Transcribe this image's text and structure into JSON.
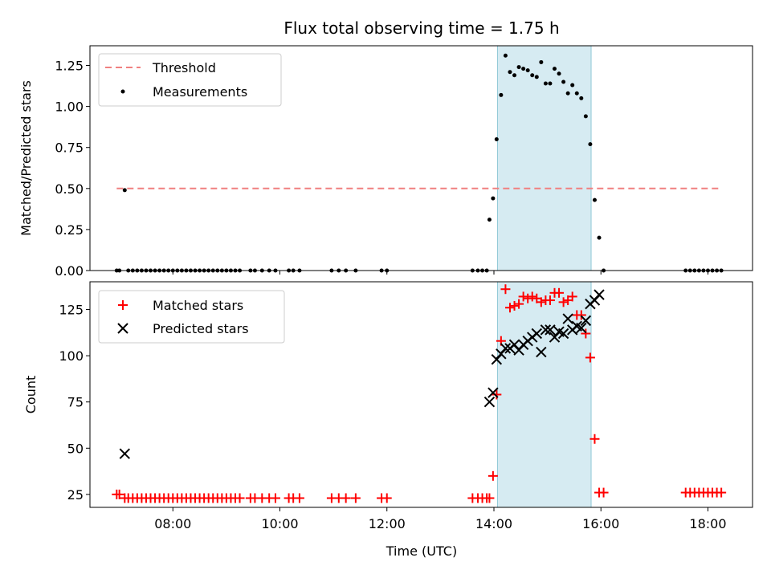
{
  "chart_data": [
    {
      "type": "scatter",
      "title": "Flux total observing time = 1.75 h",
      "xlabel": "",
      "ylabel": "Matched/Predicted stars",
      "xlim": [
        "06:27",
        "18:50"
      ],
      "ylim": [
        0,
        1.37
      ],
      "yticks": [
        0,
        0.25,
        0.5,
        0.75,
        1.0,
        1.25
      ],
      "ytick_labels": [
        "0.00",
        "0.25",
        "0.50",
        "0.75",
        "1.00",
        "1.25"
      ],
      "xticks": [
        "08:00",
        "10:00",
        "12:00",
        "14:00",
        "16:00",
        "18:00"
      ],
      "xtick_labels_shown": false,
      "grid": false,
      "legend_position": "top-left",
      "highlight_span": {
        "start": "14:04",
        "end": "15:49",
        "color": "#add8e6"
      },
      "threshold": {
        "name": "Threshold",
        "value": 0.5,
        "x_range": [
          "06:57",
          "18:15"
        ],
        "color": "#f08080",
        "style": "dashed"
      },
      "series": [
        {
          "name": "Measurements",
          "color": "#000000",
          "marker": "dot",
          "points": [
            [
              "06:57",
              0
            ],
            [
              "07:00",
              0
            ],
            [
              "07:06",
              0.49
            ],
            [
              "07:10",
              0
            ],
            [
              "07:15",
              0
            ],
            [
              "07:20",
              0
            ],
            [
              "07:25",
              0
            ],
            [
              "07:30",
              0
            ],
            [
              "07:35",
              0
            ],
            [
              "07:40",
              0
            ],
            [
              "07:45",
              0
            ],
            [
              "07:50",
              0
            ],
            [
              "07:55",
              0
            ],
            [
              "08:00",
              0
            ],
            [
              "08:05",
              0
            ],
            [
              "08:10",
              0
            ],
            [
              "08:15",
              0
            ],
            [
              "08:20",
              0
            ],
            [
              "08:25",
              0
            ],
            [
              "08:30",
              0
            ],
            [
              "08:35",
              0
            ],
            [
              "08:40",
              0
            ],
            [
              "08:45",
              0
            ],
            [
              "08:50",
              0
            ],
            [
              "08:55",
              0
            ],
            [
              "09:00",
              0
            ],
            [
              "09:05",
              0
            ],
            [
              "09:10",
              0
            ],
            [
              "09:15",
              0
            ],
            [
              "09:27",
              0
            ],
            [
              "09:32",
              0
            ],
            [
              "09:40",
              0
            ],
            [
              "09:48",
              0
            ],
            [
              "09:55",
              0
            ],
            [
              "10:10",
              0
            ],
            [
              "10:15",
              0
            ],
            [
              "10:22",
              0
            ],
            [
              "10:58",
              0
            ],
            [
              "11:06",
              0
            ],
            [
              "11:14",
              0
            ],
            [
              "11:25",
              0
            ],
            [
              "11:54",
              0
            ],
            [
              "12:00",
              0
            ],
            [
              "13:36",
              0
            ],
            [
              "13:42",
              0
            ],
            [
              "13:47",
              0
            ],
            [
              "13:52",
              0
            ],
            [
              "13:55",
              0.31
            ],
            [
              "13:59",
              0.44
            ],
            [
              "14:03",
              0.8
            ],
            [
              "14:08",
              1.07
            ],
            [
              "14:13",
              1.31
            ],
            [
              "14:18",
              1.21
            ],
            [
              "14:23",
              1.19
            ],
            [
              "14:28",
              1.24
            ],
            [
              "14:33",
              1.23
            ],
            [
              "14:38",
              1.22
            ],
            [
              "14:43",
              1.19
            ],
            [
              "14:48",
              1.18
            ],
            [
              "14:53",
              1.27
            ],
            [
              "14:58",
              1.14
            ],
            [
              "15:03",
              1.14
            ],
            [
              "15:08",
              1.23
            ],
            [
              "15:13",
              1.2
            ],
            [
              "15:18",
              1.15
            ],
            [
              "15:23",
              1.08
            ],
            [
              "15:28",
              1.13
            ],
            [
              "15:33",
              1.08
            ],
            [
              "15:38",
              1.05
            ],
            [
              "15:43",
              0.94
            ],
            [
              "15:48",
              0.77
            ],
            [
              "15:53",
              0.43
            ],
            [
              "15:58",
              0.2
            ],
            [
              "16:03",
              0
            ],
            [
              "17:35",
              0
            ],
            [
              "17:40",
              0
            ],
            [
              "17:45",
              0
            ],
            [
              "17:50",
              0
            ],
            [
              "17:55",
              0
            ],
            [
              "18:00",
              0
            ],
            [
              "18:05",
              0
            ],
            [
              "18:10",
              0
            ],
            [
              "18:15",
              0
            ]
          ]
        }
      ]
    },
    {
      "type": "scatter",
      "title": "",
      "xlabel": "Time (UTC)",
      "ylabel": "Count",
      "xlim": [
        "06:27",
        "18:50"
      ],
      "ylim": [
        18,
        140
      ],
      "yticks": [
        25,
        50,
        75,
        100,
        125
      ],
      "ytick_labels": [
        "25",
        "50",
        "75",
        "100",
        "125"
      ],
      "xticks": [
        "08:00",
        "10:00",
        "12:00",
        "14:00",
        "16:00",
        "18:00"
      ],
      "xtick_labels": [
        "08:00",
        "10:00",
        "12:00",
        "14:00",
        "16:00",
        "18:00"
      ],
      "grid": false,
      "legend_position": "top-left",
      "highlight_span": {
        "start": "14:04",
        "end": "15:49",
        "color": "#add8e6"
      },
      "series": [
        {
          "name": "Matched stars",
          "color": "#ff0000",
          "marker": "plus",
          "points": [
            [
              "06:57",
              25
            ],
            [
              "07:00",
              25
            ],
            [
              "07:06",
              23
            ],
            [
              "07:10",
              23
            ],
            [
              "07:15",
              23
            ],
            [
              "07:20",
              23
            ],
            [
              "07:25",
              23
            ],
            [
              "07:30",
              23
            ],
            [
              "07:35",
              23
            ],
            [
              "07:40",
              23
            ],
            [
              "07:45",
              23
            ],
            [
              "07:50",
              23
            ],
            [
              "07:55",
              23
            ],
            [
              "08:00",
              23
            ],
            [
              "08:05",
              23
            ],
            [
              "08:10",
              23
            ],
            [
              "08:15",
              23
            ],
            [
              "08:20",
              23
            ],
            [
              "08:25",
              23
            ],
            [
              "08:30",
              23
            ],
            [
              "08:35",
              23
            ],
            [
              "08:40",
              23
            ],
            [
              "08:45",
              23
            ],
            [
              "08:50",
              23
            ],
            [
              "08:55",
              23
            ],
            [
              "09:00",
              23
            ],
            [
              "09:05",
              23
            ],
            [
              "09:10",
              23
            ],
            [
              "09:15",
              23
            ],
            [
              "09:27",
              23
            ],
            [
              "09:32",
              23
            ],
            [
              "09:40",
              23
            ],
            [
              "09:48",
              23
            ],
            [
              "09:55",
              23
            ],
            [
              "10:10",
              23
            ],
            [
              "10:15",
              23
            ],
            [
              "10:22",
              23
            ],
            [
              "10:58",
              23
            ],
            [
              "11:06",
              23
            ],
            [
              "11:14",
              23
            ],
            [
              "11:25",
              23
            ],
            [
              "11:54",
              23
            ],
            [
              "12:00",
              23
            ],
            [
              "13:36",
              23
            ],
            [
              "13:42",
              23
            ],
            [
              "13:47",
              23
            ],
            [
              "13:52",
              23
            ],
            [
              "13:55",
              23
            ],
            [
              "13:59",
              35
            ],
            [
              "14:03",
              79
            ],
            [
              "14:08",
              108
            ],
            [
              "14:13",
              136
            ],
            [
              "14:18",
              126
            ],
            [
              "14:23",
              127
            ],
            [
              "14:28",
              128
            ],
            [
              "14:33",
              132
            ],
            [
              "14:38",
              131
            ],
            [
              "14:43",
              132
            ],
            [
              "14:48",
              131
            ],
            [
              "14:53",
              129
            ],
            [
              "14:58",
              130
            ],
            [
              "15:03",
              130
            ],
            [
              "15:08",
              134
            ],
            [
              "15:13",
              134
            ],
            [
              "15:18",
              129
            ],
            [
              "15:23",
              130
            ],
            [
              "15:28",
              132
            ],
            [
              "15:33",
              122
            ],
            [
              "15:38",
              122
            ],
            [
              "15:43",
              112
            ],
            [
              "15:48",
              99
            ],
            [
              "15:53",
              55
            ],
            [
              "15:58",
              26
            ],
            [
              "16:03",
              26
            ],
            [
              "17:35",
              26
            ],
            [
              "17:40",
              26
            ],
            [
              "17:45",
              26
            ],
            [
              "17:50",
              26
            ],
            [
              "17:55",
              26
            ],
            [
              "18:00",
              26
            ],
            [
              "18:05",
              26
            ],
            [
              "18:10",
              26
            ],
            [
              "18:15",
              26
            ]
          ]
        },
        {
          "name": "Predicted stars",
          "color": "#000000",
          "marker": "x",
          "points": [
            [
              "07:06",
              47
            ],
            [
              "13:55",
              75
            ],
            [
              "13:59",
              80
            ],
            [
              "14:03",
              98
            ],
            [
              "14:08",
              101
            ],
            [
              "14:13",
              104
            ],
            [
              "14:18",
              104
            ],
            [
              "14:23",
              106
            ],
            [
              "14:28",
              103
            ],
            [
              "14:33",
              106
            ],
            [
              "14:38",
              108
            ],
            [
              "14:43",
              110
            ],
            [
              "14:48",
              112
            ],
            [
              "14:53",
              102
            ],
            [
              "14:58",
              114
            ],
            [
              "15:03",
              114
            ],
            [
              "15:08",
              110
            ],
            [
              "15:13",
              113
            ],
            [
              "15:18",
              112
            ],
            [
              "15:23",
              120
            ],
            [
              "15:28",
              114
            ],
            [
              "15:33",
              116
            ],
            [
              "15:38",
              115
            ],
            [
              "15:43",
              119
            ],
            [
              "15:48",
              128
            ],
            [
              "15:53",
              130
            ],
            [
              "15:58",
              133
            ]
          ]
        }
      ]
    }
  ]
}
